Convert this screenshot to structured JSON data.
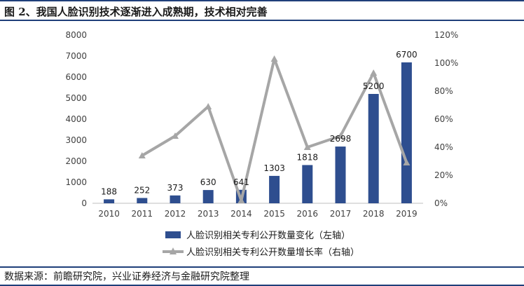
{
  "title": "图 2、我国人脸识别技术逐渐进入成熟期，技术相对完善",
  "source": "数据来源：前瞻研究院，兴业证券经济与金融研究院整理",
  "colors": {
    "bar": "#2e4e8f",
    "line": "#a6a6a6",
    "rule": "#1f3f7a"
  },
  "chart_data": {
    "type": "bar",
    "categories": [
      "2010",
      "2011",
      "2012",
      "2013",
      "2014",
      "2015",
      "2016",
      "2017",
      "2018",
      "2019"
    ],
    "series": [
      {
        "name": "人脸识别相关专利公开数量变化（左轴）",
        "type": "bar",
        "axis": "left",
        "values": [
          188,
          252,
          373,
          630,
          641,
          1303,
          1818,
          2698,
          5200,
          6700
        ],
        "data_labels": [
          "188",
          "252",
          "373",
          "630",
          "641",
          "1303",
          "1818",
          "2698",
          "5200",
          "6700"
        ]
      },
      {
        "name": "人脸识别相关专利公开数量增长率（右轴）",
        "type": "line",
        "axis": "right",
        "values": [
          null,
          0.34,
          0.48,
          0.69,
          0.02,
          1.03,
          0.4,
          0.48,
          0.93,
          0.29
        ]
      }
    ],
    "y_left": {
      "ylim": [
        0,
        8000
      ],
      "ticks": [
        "0",
        "1000",
        "2000",
        "3000",
        "4000",
        "5000",
        "6000",
        "7000",
        "8000"
      ]
    },
    "y_right": {
      "ylim": [
        0,
        1.2
      ],
      "ticks": [
        "0%",
        "20%",
        "40%",
        "60%",
        "80%",
        "100%",
        "120%"
      ]
    },
    "legend_position": "bottom"
  }
}
